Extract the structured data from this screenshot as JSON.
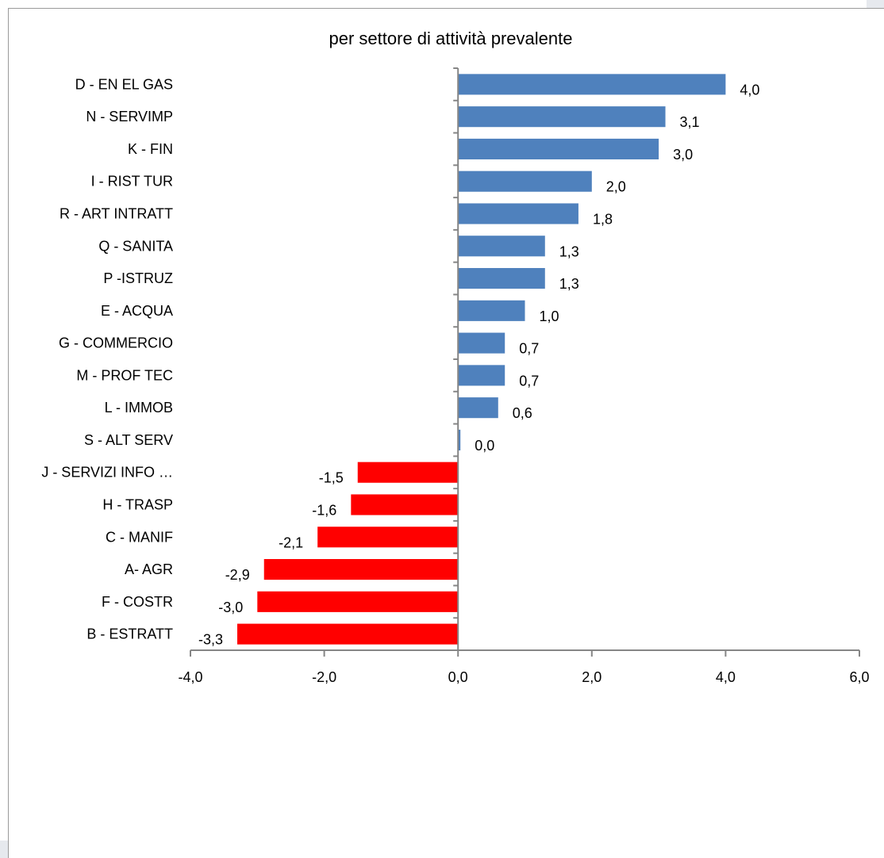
{
  "chart_data": {
    "type": "bar",
    "orientation": "horizontal",
    "title": "per settore di attività prevalente",
    "xlabel": "",
    "ylabel": "",
    "xlim": [
      -4.0,
      6.0
    ],
    "xticks": [
      "-4,0",
      "-2,0",
      "0,0",
      "2,0",
      "4,0",
      "6,0"
    ],
    "xtick_values": [
      -4,
      -2,
      0,
      2,
      4,
      6
    ],
    "grid": false,
    "legend": "none",
    "colors": {
      "positive": "#4f81bd",
      "negative": "#ff0000",
      "axis": "#868686"
    },
    "categories": [
      "D - EN EL GAS",
      "N - SERVIMP",
      "K - FIN",
      "I - RIST TUR",
      "R - ART INTRATT",
      "Q - SANITA",
      "P -ISTRUZ",
      "E - ACQUA",
      "G - COMMERCIO",
      "M - PROF TEC",
      "L - IMMOB",
      "S - ALT SERV",
      "J - SERVIZI  INFO …",
      "H - TRASP",
      "C - MANIF",
      "A- AGR",
      "F - COSTR",
      "B - ESTRATT"
    ],
    "values": [
      4.0,
      3.1,
      3.0,
      2.0,
      1.8,
      1.3,
      1.3,
      1.0,
      0.7,
      0.7,
      0.6,
      0.0,
      -1.5,
      -1.6,
      -2.1,
      -2.9,
      -3.0,
      -3.3
    ],
    "data_labels": [
      "4,0",
      "3,1",
      "3,0",
      "2,0",
      "1,8",
      "1,3",
      "1,3",
      "1,0",
      "0,7",
      "0,7",
      "0,6",
      "0,0",
      "-1,5",
      "-1,6",
      "-2,1",
      "-2,9",
      "-3,0",
      "-3,3"
    ]
  }
}
